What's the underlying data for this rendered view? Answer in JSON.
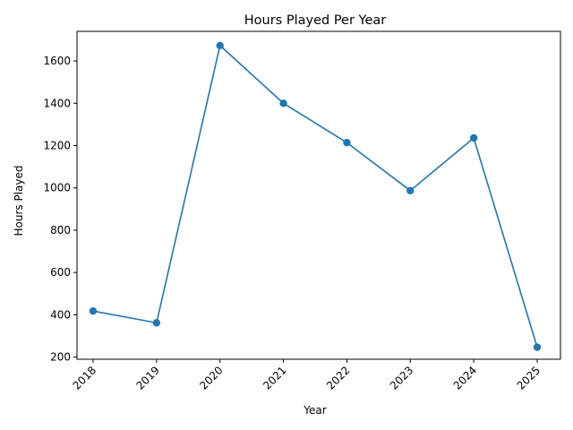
{
  "chart_data": {
    "type": "line",
    "title": "Hours Played Per Year",
    "xlabel": "Year",
    "ylabel": "Hours Played",
    "categories": [
      "2018",
      "2019",
      "2020",
      "2021",
      "2022",
      "2023",
      "2024",
      "2025"
    ],
    "series": [
      {
        "values": [
          418,
          362,
          1673,
          1400,
          1214,
          987,
          1236,
          247
        ]
      }
    ],
    "y_ticks": [
      200,
      400,
      600,
      800,
      1000,
      1200,
      1400,
      1600
    ],
    "ylim": [
      190,
      1740
    ],
    "grid": false,
    "legend": "none",
    "x_tick_rotation": 45,
    "line_color": "#1f77b4",
    "marker": "circle"
  }
}
